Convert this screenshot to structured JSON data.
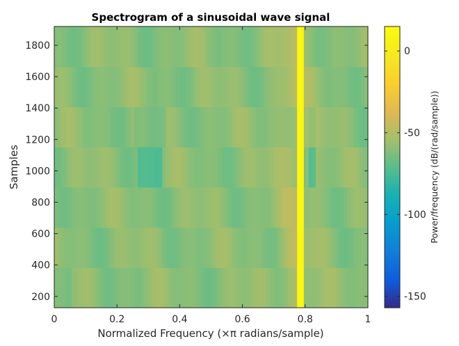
{
  "chart_data": {
    "type": "heatmap",
    "title": "Spectrogram of a sinusoidal wave signal",
    "xlabel": "Normalized Frequency (×π radians/sample)",
    "ylabel": "Samples",
    "colorbar_label": "Power/frequency (dB/(rad/sample))",
    "xlim": [
      0,
      1
    ],
    "ylim": [
      128,
      1920
    ],
    "x_ticks": [
      0,
      0.2,
      0.4,
      0.6,
      0.8,
      1
    ],
    "x_tick_labels": [
      "0",
      "0.2",
      "0.4",
      "0.6",
      "0.8",
      "1"
    ],
    "y_ticks": [
      200,
      400,
      600,
      800,
      1000,
      1200,
      1400,
      1600,
      1800
    ],
    "y_tick_labels": [
      "200",
      "400",
      "600",
      "800",
      "1000",
      "1200",
      "1400",
      "1600",
      "1800"
    ],
    "colorbar_range": [
      -157,
      15
    ],
    "colorbar_ticks": [
      0,
      -50,
      -100,
      -150
    ],
    "colorbar_tick_labels": [
      "0",
      "-50",
      "-100",
      "-150"
    ],
    "colormap": "parula",
    "time_segments": [
      {
        "y": [
          128,
          384
        ]
      },
      {
        "y": [
          384,
          640
        ]
      },
      {
        "y": [
          640,
          896
        ]
      },
      {
        "y": [
          896,
          1152
        ]
      },
      {
        "y": [
          1152,
          1408
        ]
      },
      {
        "y": [
          1408,
          1664
        ]
      },
      {
        "y": [
          1664,
          1920
        ]
      }
    ],
    "peak_frequency": 0.785,
    "peak_power_db": 12,
    "background_power_db": [
      -60,
      -45
    ],
    "grid": false,
    "colorbar_position": "right"
  }
}
